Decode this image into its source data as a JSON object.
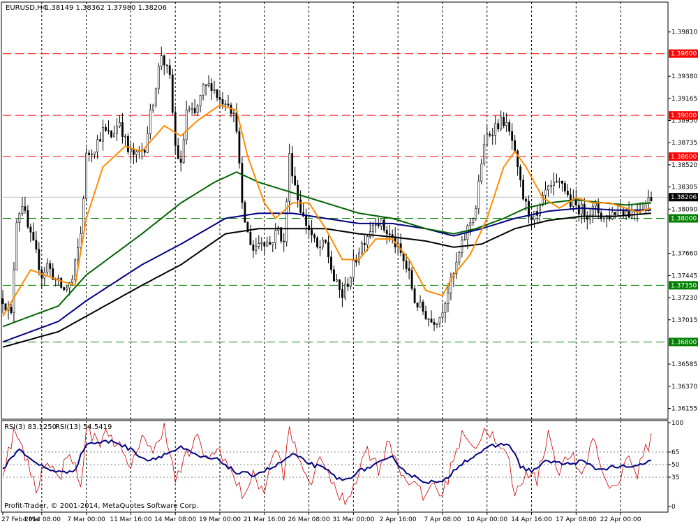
{
  "header": {
    "symbol_tf": "EURUSD,H4",
    "ohlc": "1.38149 1.38362 1.37980 1.38206"
  },
  "rsi_header": {
    "rsi3": "RSI(3) 83.1250",
    "rsi13": "RSI(13) 54.5419"
  },
  "copyright": "Profit-Trader, © 2001-2014, MetaQuotes Software Corp.",
  "colors": {
    "candle": "#000000",
    "ma_fast": "#ff8c00",
    "ma_green": "#006400",
    "ma_navy": "#000080",
    "ma_black": "#000000",
    "resistance": "#ff0000",
    "support": "#008000",
    "rsi_fast": "#cc0000",
    "rsi_slow": "#000080",
    "price_tag": "#000000"
  },
  "price_axis": {
    "ticks": [
      "1.39810",
      "1.39380",
      "1.39165",
      "1.38950",
      "1.38735",
      "1.38520",
      "1.38305",
      "1.38090",
      "1.37660",
      "1.37445",
      "1.37230",
      "1.37015",
      "1.36585",
      "1.36370",
      "1.36155"
    ],
    "tick_values": [
      1.3981,
      1.3938,
      1.39165,
      1.3895,
      1.38735,
      1.3852,
      1.38305,
      1.3809,
      1.3766,
      1.37445,
      1.3723,
      1.37015,
      1.36585,
      1.3637,
      1.36155
    ],
    "range": [
      1.3605,
      1.401
    ]
  },
  "current_price": {
    "label": "1.38206",
    "value": 1.38206
  },
  "levels": [
    {
      "label": "1.39600",
      "value": 1.396,
      "type": "resistance"
    },
    {
      "label": "1.39000",
      "value": 1.39,
      "type": "resistance"
    },
    {
      "label": "1.38600",
      "value": 1.386,
      "type": "resistance"
    },
    {
      "label": "1.38000",
      "value": 1.38,
      "type": "support"
    },
    {
      "label": "1.37350",
      "value": 1.3735,
      "type": "support"
    },
    {
      "label": "1.36800",
      "value": 1.368,
      "type": "support"
    }
  ],
  "rsi_axis": {
    "labels": [
      "100",
      "65",
      "50",
      "35",
      "0"
    ],
    "values": [
      100,
      65,
      50,
      35,
      0
    ],
    "dotted": [
      65,
      50,
      35
    ]
  },
  "time_axis": {
    "labels": [
      "27 Feb 2014",
      "4 Mar 08:00",
      "7 Mar 00:00",
      "11 Mar 16:00",
      "14 Mar 08:00",
      "19 Mar 00:00",
      "21 Mar 16:00",
      "26 Mar 08:00",
      "31 Mar 00:00",
      "2 Apr 16:00",
      "7 Apr 08:00",
      "10 Apr 00:00",
      "14 Apr 16:00",
      "17 Apr 08:00",
      "22 Apr 00:00"
    ],
    "bar_index": [
      0,
      14,
      30,
      46,
      62,
      78,
      94,
      110,
      126,
      142,
      158,
      174,
      190,
      206,
      222
    ]
  },
  "chart_data": {
    "type": "candlestick",
    "symbol": "EURUSD",
    "timeframe": "H4",
    "bar_count": 234,
    "close_anchors": [
      [
        0,
        1.3722
      ],
      [
        3,
        1.3705
      ],
      [
        5,
        1.38
      ],
      [
        7,
        1.3815
      ],
      [
        9,
        1.379
      ],
      [
        12,
        1.3765
      ],
      [
        14,
        1.3745
      ],
      [
        16,
        1.3755
      ],
      [
        19,
        1.374
      ],
      [
        22,
        1.373
      ],
      [
        25,
        1.374
      ],
      [
        28,
        1.3785
      ],
      [
        30,
        1.386
      ],
      [
        33,
        1.387
      ],
      [
        36,
        1.3885
      ],
      [
        39,
        1.388
      ],
      [
        42,
        1.3895
      ],
      [
        45,
        1.3865
      ],
      [
        48,
        1.386
      ],
      [
        51,
        1.387
      ],
      [
        54,
        1.3915
      ],
      [
        57,
        1.396
      ],
      [
        60,
        1.3935
      ],
      [
        62,
        1.387
      ],
      [
        64,
        1.385
      ],
      [
        66,
        1.3905
      ],
      [
        69,
        1.39
      ],
      [
        72,
        1.3925
      ],
      [
        75,
        1.393
      ],
      [
        78,
        1.3915
      ],
      [
        81,
        1.3915
      ],
      [
        84,
        1.389
      ],
      [
        86,
        1.381
      ],
      [
        88,
        1.3785
      ],
      [
        90,
        1.377
      ],
      [
        93,
        1.378
      ],
      [
        96,
        1.3775
      ],
      [
        99,
        1.379
      ],
      [
        101,
        1.3775
      ],
      [
        103,
        1.386
      ],
      [
        106,
        1.382
      ],
      [
        108,
        1.38
      ],
      [
        110,
        1.379
      ],
      [
        113,
        1.377
      ],
      [
        116,
        1.3775
      ],
      [
        119,
        1.374
      ],
      [
        122,
        1.3725
      ],
      [
        125,
        1.3745
      ],
      [
        128,
        1.377
      ],
      [
        131,
        1.3785
      ],
      [
        134,
        1.38
      ],
      [
        137,
        1.379
      ],
      [
        140,
        1.378
      ],
      [
        143,
        1.3765
      ],
      [
        146,
        1.3745
      ],
      [
        148,
        1.372
      ],
      [
        151,
        1.371
      ],
      [
        154,
        1.37
      ],
      [
        157,
        1.3705
      ],
      [
        160,
        1.373
      ],
      [
        162,
        1.3745
      ],
      [
        164,
        1.3765
      ],
      [
        167,
        1.379
      ],
      [
        170,
        1.381
      ],
      [
        172,
        1.3855
      ],
      [
        174,
        1.388
      ],
      [
        177,
        1.389
      ],
      [
        180,
        1.3895
      ],
      [
        183,
        1.3875
      ],
      [
        185,
        1.3845
      ],
      [
        187,
        1.382
      ],
      [
        189,
        1.3805
      ],
      [
        192,
        1.38
      ],
      [
        195,
        1.3825
      ],
      [
        198,
        1.383
      ],
      [
        201,
        1.3835
      ],
      [
        204,
        1.3815
      ],
      [
        207,
        1.381
      ],
      [
        210,
        1.3805
      ],
      [
        213,
        1.381
      ],
      [
        216,
        1.38
      ],
      [
        219,
        1.3805
      ],
      [
        222,
        1.381
      ],
      [
        225,
        1.3805
      ],
      [
        228,
        1.381
      ],
      [
        231,
        1.3815
      ],
      [
        233,
        1.3821
      ]
    ],
    "ma_fast_anchors": [
      [
        0,
        1.3705
      ],
      [
        10,
        1.375
      ],
      [
        20,
        1.374
      ],
      [
        26,
        1.3735
      ],
      [
        30,
        1.38
      ],
      [
        36,
        1.385
      ],
      [
        44,
        1.387
      ],
      [
        50,
        1.3865
      ],
      [
        58,
        1.389
      ],
      [
        64,
        1.388
      ],
      [
        70,
        1.3895
      ],
      [
        78,
        1.391
      ],
      [
        84,
        1.3905
      ],
      [
        88,
        1.386
      ],
      [
        94,
        1.3815
      ],
      [
        98,
        1.38
      ],
      [
        104,
        1.3815
      ],
      [
        110,
        1.3815
      ],
      [
        116,
        1.379
      ],
      [
        122,
        1.376
      ],
      [
        128,
        1.376
      ],
      [
        134,
        1.378
      ],
      [
        140,
        1.378
      ],
      [
        146,
        1.376
      ],
      [
        152,
        1.373
      ],
      [
        158,
        1.3725
      ],
      [
        162,
        1.3745
      ],
      [
        168,
        1.3765
      ],
      [
        174,
        1.38
      ],
      [
        180,
        1.385
      ],
      [
        184,
        1.3865
      ],
      [
        188,
        1.385
      ],
      [
        194,
        1.382
      ],
      [
        200,
        1.381
      ],
      [
        206,
        1.382
      ],
      [
        212,
        1.3815
      ],
      [
        218,
        1.3815
      ],
      [
        224,
        1.381
      ],
      [
        228,
        1.3806
      ],
      [
        233,
        1.381
      ]
    ],
    "ma_green_anchors": [
      [
        0,
        1.3695
      ],
      [
        20,
        1.3715
      ],
      [
        30,
        1.3745
      ],
      [
        50,
        1.3785
      ],
      [
        64,
        1.3815
      ],
      [
        76,
        1.3835
      ],
      [
        84,
        1.3845
      ],
      [
        92,
        1.3835
      ],
      [
        104,
        1.3825
      ],
      [
        116,
        1.3815
      ],
      [
        128,
        1.3805
      ],
      [
        140,
        1.38
      ],
      [
        152,
        1.379
      ],
      [
        162,
        1.3785
      ],
      [
        170,
        1.379
      ],
      [
        180,
        1.38
      ],
      [
        188,
        1.381
      ],
      [
        196,
        1.3815
      ],
      [
        206,
        1.3818
      ],
      [
        216,
        1.3815
      ],
      [
        224,
        1.3813
      ],
      [
        233,
        1.3815
      ]
    ],
    "ma_navy_anchors": [
      [
        0,
        1.368
      ],
      [
        20,
        1.37
      ],
      [
        30,
        1.372
      ],
      [
        50,
        1.3755
      ],
      [
        64,
        1.3775
      ],
      [
        80,
        1.38
      ],
      [
        92,
        1.3805
      ],
      [
        104,
        1.3805
      ],
      [
        116,
        1.38
      ],
      [
        128,
        1.3795
      ],
      [
        140,
        1.3795
      ],
      [
        152,
        1.379
      ],
      [
        162,
        1.3783
      ],
      [
        172,
        1.379
      ],
      [
        184,
        1.38
      ],
      [
        196,
        1.3807
      ],
      [
        208,
        1.381
      ],
      [
        220,
        1.3808
      ],
      [
        233,
        1.3808
      ]
    ],
    "ma_black_anchors": [
      [
        0,
        1.3675
      ],
      [
        20,
        1.369
      ],
      [
        30,
        1.3705
      ],
      [
        50,
        1.3735
      ],
      [
        64,
        1.3755
      ],
      [
        80,
        1.3785
      ],
      [
        92,
        1.379
      ],
      [
        104,
        1.379
      ],
      [
        116,
        1.379
      ],
      [
        128,
        1.3785
      ],
      [
        140,
        1.3782
      ],
      [
        152,
        1.3778
      ],
      [
        162,
        1.3772
      ],
      [
        172,
        1.3775
      ],
      [
        184,
        1.379
      ],
      [
        196,
        1.3798
      ],
      [
        208,
        1.3802
      ],
      [
        220,
        1.3802
      ],
      [
        233,
        1.3805
      ]
    ],
    "rsi3_anchors": [
      [
        0,
        40
      ],
      [
        4,
        90
      ],
      [
        8,
        60
      ],
      [
        12,
        20
      ],
      [
        16,
        60
      ],
      [
        20,
        30
      ],
      [
        24,
        70
      ],
      [
        28,
        20
      ],
      [
        30,
        95
      ],
      [
        34,
        75
      ],
      [
        38,
        90
      ],
      [
        42,
        70
      ],
      [
        46,
        40
      ],
      [
        50,
        90
      ],
      [
        54,
        60
      ],
      [
        58,
        100
      ],
      [
        62,
        30
      ],
      [
        66,
        60
      ],
      [
        70,
        80
      ],
      [
        74,
        55
      ],
      [
        78,
        70
      ],
      [
        82,
        40
      ],
      [
        86,
        15
      ],
      [
        90,
        35
      ],
      [
        94,
        20
      ],
      [
        98,
        70
      ],
      [
        101,
        40
      ],
      [
        103,
        90
      ],
      [
        107,
        50
      ],
      [
        111,
        30
      ],
      [
        115,
        60
      ],
      [
        119,
        20
      ],
      [
        123,
        5
      ],
      [
        127,
        35
      ],
      [
        131,
        70
      ],
      [
        135,
        45
      ],
      [
        139,
        80
      ],
      [
        143,
        40
      ],
      [
        147,
        30
      ],
      [
        151,
        10
      ],
      [
        155,
        30
      ],
      [
        158,
        10
      ],
      [
        162,
        60
      ],
      [
        166,
        90
      ],
      [
        170,
        70
      ],
      [
        174,
        95
      ],
      [
        178,
        70
      ],
      [
        182,
        55
      ],
      [
        184,
        10
      ],
      [
        188,
        45
      ],
      [
        192,
        30
      ],
      [
        196,
        90
      ],
      [
        200,
        40
      ],
      [
        204,
        65
      ],
      [
        208,
        30
      ],
      [
        212,
        85
      ],
      [
        216,
        35
      ],
      [
        220,
        20
      ],
      [
        224,
        60
      ],
      [
        228,
        40
      ],
      [
        233,
        83
      ]
    ],
    "rsi13_anchors": [
      [
        0,
        45
      ],
      [
        6,
        70
      ],
      [
        10,
        55
      ],
      [
        16,
        45
      ],
      [
        22,
        40
      ],
      [
        26,
        45
      ],
      [
        30,
        75
      ],
      [
        40,
        78
      ],
      [
        46,
        68
      ],
      [
        52,
        55
      ],
      [
        58,
        62
      ],
      [
        64,
        70
      ],
      [
        70,
        60
      ],
      [
        78,
        55
      ],
      [
        84,
        40
      ],
      [
        90,
        38
      ],
      [
        98,
        48
      ],
      [
        104,
        62
      ],
      [
        110,
        52
      ],
      [
        116,
        44
      ],
      [
        122,
        30
      ],
      [
        128,
        42
      ],
      [
        134,
        50
      ],
      [
        140,
        58
      ],
      [
        146,
        38
      ],
      [
        152,
        30
      ],
      [
        158,
        28
      ],
      [
        164,
        50
      ],
      [
        170,
        62
      ],
      [
        176,
        72
      ],
      [
        182,
        75
      ],
      [
        186,
        48
      ],
      [
        190,
        42
      ],
      [
        196,
        55
      ],
      [
        202,
        50
      ],
      [
        208,
        54
      ],
      [
        214,
        44
      ],
      [
        220,
        48
      ],
      [
        226,
        46
      ],
      [
        233,
        55
      ]
    ]
  }
}
